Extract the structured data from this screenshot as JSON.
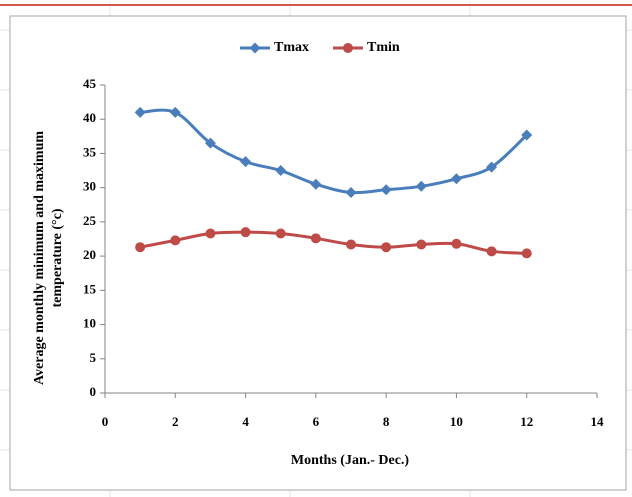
{
  "chart_data": {
    "type": "line",
    "xlabel": "Months (Jan.- Dec.)",
    "ylabel": [
      "Average monthly minimum and maximum",
      "temperature (°c)"
    ],
    "x": [
      1,
      2,
      3,
      4,
      5,
      6,
      7,
      8,
      9,
      10,
      11,
      12
    ],
    "series": [
      {
        "name": "Tmax",
        "color": "#4a7ebb",
        "marker": "diamond",
        "values": [
          41,
          41,
          36.5,
          33.8,
          32.5,
          30.5,
          29.3,
          29.7,
          30.2,
          31.3,
          33,
          37.7
        ]
      },
      {
        "name": "Tmin",
        "color": "#be4b48",
        "marker": "circle",
        "values": [
          21.3,
          22.3,
          23.3,
          23.5,
          23.3,
          22.6,
          21.7,
          21.3,
          21.7,
          21.8,
          20.7,
          20.4
        ]
      }
    ],
    "xlim": [
      0,
      14
    ],
    "xticks": [
      0,
      2,
      4,
      6,
      8,
      10,
      12,
      14
    ],
    "ylim": [
      0,
      45
    ],
    "yticks": [
      0,
      5,
      10,
      15,
      20,
      25,
      30,
      35,
      40,
      45
    ],
    "smooth": true,
    "legend": "top"
  }
}
